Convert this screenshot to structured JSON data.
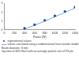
{
  "chart_data": {
    "type": "scatter",
    "x_label": "Power (W)",
    "x": [
      400,
      600,
      800,
      1000,
      1200,
      1400
    ],
    "series": [
      {
        "name": "experimental values",
        "type": "scatter",
        "marker": "circle",
        "color": "#1a3f8f",
        "values": [
          0.2,
          0.6,
          1.1,
          1.6,
          2.1,
          2.6
        ]
      },
      {
        "name": "values calculated using a tridimensional heat transfer model",
        "type": "line",
        "line_style": "solid",
        "color": "#7aa7d8",
        "values": [
          0.1,
          0.55,
          1.0,
          1.5,
          2.0,
          2.5
        ]
      }
    ],
    "xlim": [
      0,
      1400
    ],
    "xticks": [
      0,
      200,
      400,
      600,
      800,
      1000,
      1200,
      1400
    ],
    "ylim": [
      0,
      3
    ],
    "yticks": [
      0,
      1,
      2,
      3
    ],
    "grid": false,
    "annotations": [
      "Beam diameter: 8 mm",
      "Injection of 30% NaCl with an average particle size of 93 µm"
    ]
  }
}
